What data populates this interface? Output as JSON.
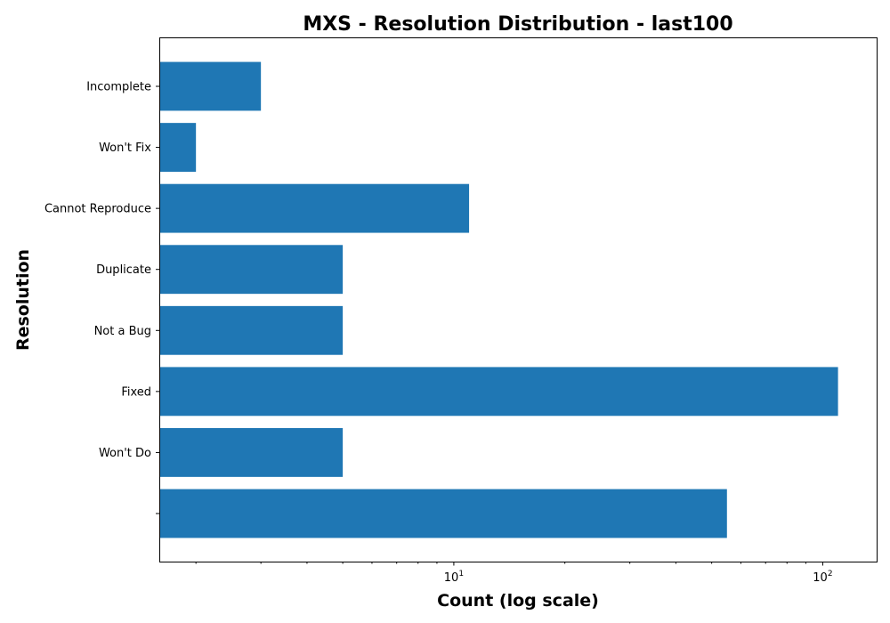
{
  "chart_data": {
    "type": "bar",
    "orientation": "horizontal",
    "title": "MXS - Resolution Distribution - last100",
    "xlabel": "Count (log scale)",
    "ylabel": "Resolution",
    "x_scale": "log",
    "xlim": [
      1.6,
      140
    ],
    "x_major_ticks": [
      {
        "base": "10",
        "exp": "1",
        "value": 10
      },
      {
        "base": "10",
        "exp": "2",
        "value": 100
      }
    ],
    "categories": [
      "Incomplete",
      "Won't Fix",
      "Cannot Reproduce",
      "Duplicate",
      "Not a Bug",
      "Fixed",
      "Won't Do",
      ""
    ],
    "values": [
      3,
      2,
      11,
      5,
      5,
      110,
      5,
      55
    ],
    "bar_color": "#1f77b4",
    "grid": false,
    "legend": "none"
  }
}
